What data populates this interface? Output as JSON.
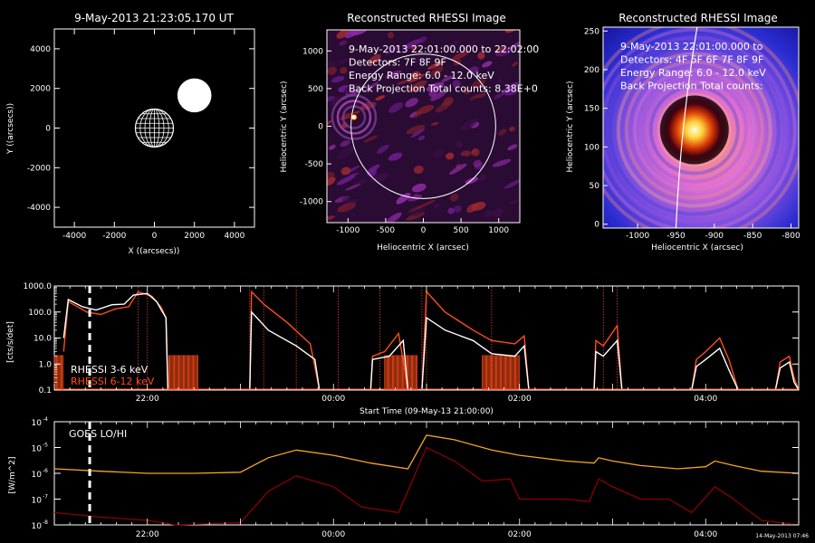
{
  "colors": {
    "rhessi_3_6": "#ffffff",
    "rhessi_6_12": "#ff4d1a",
    "goes_lo": "#f5a623",
    "goes_hi": "#8b0000",
    "flare_marker": "#e04040"
  },
  "chart_data": [
    {
      "type": "scatter",
      "title": "9-May-2013 21:23:05.170 UT",
      "xlabel": "X ((arcsecs))",
      "ylabel": "Y ((arcsecs))",
      "xlim": [
        -5000,
        5000
      ],
      "ylim": [
        -5000,
        5000
      ],
      "xticks": [
        "-4000",
        "-2000",
        "0",
        "2000",
        "4000"
      ],
      "yticks": [
        "-4000",
        "-2000",
        "0",
        "2000",
        "4000"
      ],
      "objects": [
        {
          "name": "sun",
          "x": 0,
          "y": 0,
          "radius": 950
        },
        {
          "name": "spacecraft",
          "x": 2000,
          "y": 1650,
          "radius": 850
        }
      ]
    },
    {
      "type": "heatmap",
      "title": "Reconstructed RHESSI Image",
      "xlabel": "Heliocentric X (arcsec)",
      "ylabel": "Heliocentric Y (arcsec)",
      "xlim": [
        -1280,
        1280
      ],
      "ylim": [
        -1280,
        1280
      ],
      "xticks": [
        "-1000",
        "-500",
        "0",
        "500",
        "1000"
      ],
      "yticks": [
        "-1000",
        "-500",
        "0",
        "500",
        "1000"
      ],
      "annotations": [
        "9-May-2013 22:01:00.000 to 22:02:00",
        "Detectors: 7F 8F 9F",
        "Energy Range: 6.0 - 12.0 keV",
        "Back Projection     Total counts: 8.38E+0"
      ],
      "source": {
        "x": -920,
        "y": 120
      }
    },
    {
      "type": "heatmap",
      "title": "Reconstructed RHESSI Image",
      "xlabel": "Heliocentric X (arcsec)",
      "ylabel": "Heliocentric Y (arcsec)",
      "xlim": [
        -1045,
        -790
      ],
      "ylim": [
        -5,
        255
      ],
      "xticks": [
        "-1000",
        "-950",
        "-900",
        "-850",
        "-800"
      ],
      "yticks": [
        "0",
        "50",
        "100",
        "150",
        "200",
        "250"
      ],
      "annotations": [
        "9-May-2013 22:01:00.000 to",
        "Detectors: 4F 5F 6F 7F 8F 9F",
        "Energy Range: 6.0 - 12.0 keV",
        "Back Projection     Total counts:"
      ],
      "source": {
        "x": -926,
        "y": 122
      }
    },
    {
      "type": "line",
      "xlabel": "Start Time (09-May-13 21:00:00)",
      "ylabel": "[cts/s/det]",
      "yscale": "log",
      "ylim": [
        0.1,
        1000
      ],
      "xlim_hours": [
        21.0,
        29.0
      ],
      "yticks": [
        "0.1",
        "1.0",
        "10.0",
        "100.0",
        "1000.0"
      ],
      "xticks": [
        "22:00",
        "00:00",
        "02:00",
        "04:00"
      ],
      "xtick_hours": [
        22,
        24,
        26,
        28
      ],
      "series": [
        {
          "name": "RHESSI  3-6 keV",
          "segments": [
            [
              [
                21.1,
                10
              ],
              [
                21.15,
                300
              ],
              [
                21.3,
                160
              ],
              [
                21.45,
                120
              ],
              [
                21.62,
                190
              ],
              [
                21.75,
                200
              ],
              [
                21.85,
                450
              ],
              [
                22.0,
                520
              ],
              [
                22.1,
                250
              ],
              [
                22.15,
                120
              ],
              [
                22.2,
                60
              ],
              [
                22.22,
                0.1
              ]
            ],
            [
              [
                23.1,
                0.1
              ],
              [
                23.12,
                100
              ],
              [
                23.3,
                20
              ],
              [
                23.6,
                5
              ],
              [
                23.8,
                1.5
              ],
              [
                23.85,
                0.1
              ]
            ],
            [
              [
                24.4,
                0.1
              ],
              [
                24.42,
                1.5
              ],
              [
                24.6,
                2
              ],
              [
                24.75,
                8
              ],
              [
                24.8,
                0.1
              ]
            ],
            [
              [
                24.95,
                0.1
              ],
              [
                25.0,
                60
              ],
              [
                25.2,
                20
              ],
              [
                25.5,
                8
              ],
              [
                25.7,
                2.5
              ],
              [
                25.95,
                2
              ],
              [
                26.05,
                5
              ],
              [
                26.1,
                0.1
              ]
            ],
            [
              [
                26.8,
                0.1
              ],
              [
                26.82,
                3
              ],
              [
                26.9,
                2
              ],
              [
                27.05,
                8
              ],
              [
                27.1,
                0.1
              ]
            ],
            [
              [
                27.85,
                0.1
              ],
              [
                27.9,
                0.8
              ],
              [
                28.0,
                1.5
              ],
              [
                28.15,
                4
              ],
              [
                28.25,
                0.6
              ],
              [
                28.35,
                0.1
              ]
            ],
            [
              [
                28.75,
                0.1
              ],
              [
                28.8,
                0.7
              ],
              [
                28.9,
                1.2
              ],
              [
                28.95,
                0.2
              ],
              [
                29.0,
                0.1
              ]
            ]
          ]
        },
        {
          "name": "RHESSI 6-12 keV",
          "segments": [
            [
              [
                21.1,
                3
              ],
              [
                21.15,
                250
              ],
              [
                21.35,
                100
              ],
              [
                21.5,
                80
              ],
              [
                21.65,
                130
              ],
              [
                21.8,
                160
              ],
              [
                21.9,
                600
              ],
              [
                22.05,
                400
              ],
              [
                22.15,
                150
              ],
              [
                22.2,
                60
              ],
              [
                22.22,
                0.1
              ]
            ],
            [
              [
                23.1,
                0.1
              ],
              [
                23.12,
                600
              ],
              [
                23.25,
                200
              ],
              [
                23.5,
                40
              ],
              [
                23.75,
                6
              ],
              [
                23.85,
                0.1
              ]
            ],
            [
              [
                24.4,
                0.1
              ],
              [
                24.42,
                2
              ],
              [
                24.55,
                3
              ],
              [
                24.7,
                15
              ],
              [
                24.8,
                0.1
              ]
            ],
            [
              [
                24.95,
                0.1
              ],
              [
                25.0,
                600
              ],
              [
                25.2,
                100
              ],
              [
                25.5,
                20
              ],
              [
                25.7,
                8
              ],
              [
                25.95,
                6
              ],
              [
                26.05,
                12
              ],
              [
                26.1,
                0.1
              ]
            ],
            [
              [
                26.8,
                0.1
              ],
              [
                26.82,
                8
              ],
              [
                26.9,
                5
              ],
              [
                27.05,
                30
              ],
              [
                27.1,
                0.1
              ]
            ],
            [
              [
                27.85,
                0.1
              ],
              [
                27.9,
                1.5
              ],
              [
                28.0,
                3
              ],
              [
                28.15,
                10
              ],
              [
                28.25,
                1.5
              ],
              [
                28.35,
                0.1
              ]
            ],
            [
              [
                28.75,
                0.1
              ],
              [
                28.8,
                1.2
              ],
              [
                28.9,
                2
              ],
              [
                28.95,
                0.3
              ],
              [
                29.0,
                0.1
              ]
            ]
          ]
        }
      ],
      "marker_hour": 21.38,
      "flare_lines_hours": [
        21.9,
        22.0,
        23.1,
        23.25,
        23.6,
        24.05,
        24.5,
        24.95,
        25.0,
        25.7,
        26.9,
        27.05
      ]
    },
    {
      "type": "line",
      "xlabel": "Start Time (09-May-13 21:00:00)",
      "ylabel": "[W/m^2]",
      "yscale": "log",
      "ylim": [
        1e-08,
        0.0001
      ],
      "xlim_hours": [
        21.0,
        29.0
      ],
      "ytick_exponents": [
        -8,
        -7,
        -6,
        -5,
        -4
      ],
      "xticks": [
        "22:00",
        "00:00",
        "02:00",
        "04:00"
      ],
      "xtick_hours": [
        22,
        24,
        26,
        28
      ],
      "legend": "GOES LO/HI",
      "footer": "14-May-2013 07:46",
      "series": [
        {
          "name": "GOES LO",
          "points": [
            [
              21.0,
              1.5e-06
            ],
            [
              21.5,
              1.2e-06
            ],
            [
              22.0,
              1e-06
            ],
            [
              22.5,
              1e-06
            ],
            [
              23.0,
              1.1e-06
            ],
            [
              23.3,
              4e-06
            ],
            [
              23.6,
              8e-06
            ],
            [
              24.0,
              5e-06
            ],
            [
              24.4,
              2.5e-06
            ],
            [
              24.8,
              1.5e-06
            ],
            [
              25.0,
              3e-05
            ],
            [
              25.3,
              2e-05
            ],
            [
              25.7,
              8e-06
            ],
            [
              26.0,
              5e-06
            ],
            [
              26.5,
              3e-06
            ],
            [
              26.8,
              2.5e-06
            ],
            [
              26.85,
              4e-06
            ],
            [
              27.0,
              3e-06
            ],
            [
              27.3,
              2e-06
            ],
            [
              27.7,
              1.5e-06
            ],
            [
              28.0,
              1.8e-06
            ],
            [
              28.1,
              3e-06
            ],
            [
              28.3,
              2e-06
            ],
            [
              28.6,
              1.2e-06
            ],
            [
              29.0,
              1e-06
            ]
          ]
        },
        {
          "name": "GOES HI",
          "points": [
            [
              21.0,
              3e-08
            ],
            [
              21.5,
              2e-08
            ],
            [
              22.0,
              1.5e-08
            ],
            [
              22.3,
              1e-08
            ],
            [
              23.0,
              1.2e-08
            ],
            [
              23.3,
              2e-07
            ],
            [
              23.6,
              8e-07
            ],
            [
              24.0,
              3e-07
            ],
            [
              24.3,
              5e-08
            ],
            [
              24.7,
              3e-08
            ],
            [
              25.0,
              1e-05
            ],
            [
              25.3,
              3e-06
            ],
            [
              25.6,
              5e-07
            ],
            [
              25.9,
              6e-07
            ],
            [
              26.0,
              1e-07
            ],
            [
              26.5,
              1e-07
            ],
            [
              26.75,
              8e-08
            ],
            [
              26.85,
              6e-07
            ],
            [
              27.0,
              3e-07
            ],
            [
              27.3,
              1e-07
            ],
            [
              27.6,
              1e-07
            ],
            [
              27.85,
              3e-08
            ],
            [
              28.1,
              3e-07
            ],
            [
              28.3,
              1e-07
            ],
            [
              28.6,
              1.5e-08
            ],
            [
              29.0,
              1e-08
            ]
          ]
        }
      ],
      "marker_hour": 21.38
    }
  ]
}
